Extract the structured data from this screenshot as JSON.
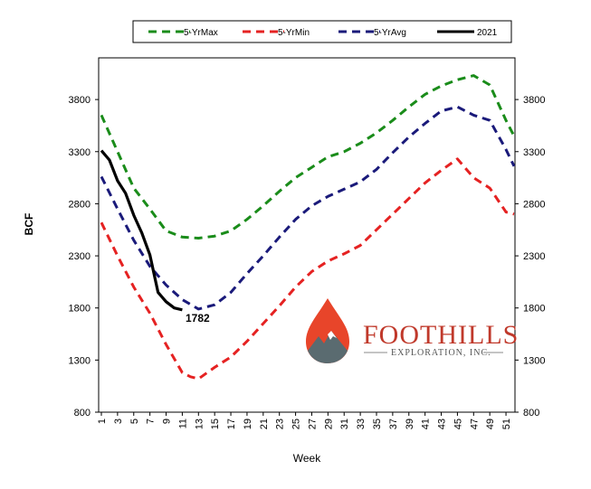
{
  "chart_data": {
    "type": "line",
    "xlabel": "Week",
    "ylabel": "BCF",
    "xlim": [
      1,
      52
    ],
    "ylim": [
      800,
      4200
    ],
    "x_ticks": [
      1,
      3,
      5,
      7,
      9,
      11,
      13,
      15,
      17,
      19,
      21,
      23,
      25,
      27,
      29,
      31,
      33,
      35,
      37,
      39,
      41,
      43,
      45,
      47,
      49,
      51
    ],
    "y_ticks": [
      800,
      1300,
      1800,
      2300,
      2800,
      3300,
      3800
    ],
    "legend_position": "top",
    "series": [
      {
        "name": "5-YrMax",
        "color": "#1a8c1a",
        "style": "dashed",
        "x": [
          1,
          3,
          5,
          7,
          9,
          11,
          13,
          15,
          17,
          19,
          21,
          23,
          25,
          27,
          29,
          31,
          33,
          35,
          37,
          39,
          41,
          43,
          45,
          47,
          49,
          51,
          52
        ],
        "values": [
          3650,
          3300,
          2950,
          2750,
          2540,
          2480,
          2470,
          2490,
          2540,
          2650,
          2780,
          2920,
          3050,
          3150,
          3250,
          3300,
          3380,
          3480,
          3600,
          3730,
          3850,
          3930,
          3990,
          4030,
          3940,
          3600,
          3450
        ]
      },
      {
        "name": "5-YrMin",
        "color": "#e52222",
        "style": "dashed",
        "x": [
          1,
          3,
          5,
          7,
          9,
          11,
          12,
          13,
          15,
          17,
          19,
          21,
          23,
          25,
          27,
          29,
          31,
          33,
          35,
          37,
          39,
          41,
          43,
          45,
          47,
          49,
          51,
          52
        ],
        "values": [
          2620,
          2300,
          2000,
          1750,
          1450,
          1180,
          1140,
          1120,
          1230,
          1330,
          1480,
          1650,
          1820,
          2000,
          2150,
          2250,
          2320,
          2400,
          2550,
          2700,
          2850,
          3000,
          3120,
          3230,
          3050,
          2950,
          2720,
          2700
        ]
      },
      {
        "name": "5-YrAvg",
        "color": "#1a1a7a",
        "style": "dashed",
        "x": [
          1,
          3,
          5,
          7,
          9,
          11,
          13,
          15,
          17,
          19,
          21,
          23,
          25,
          27,
          29,
          31,
          33,
          35,
          37,
          39,
          41,
          43,
          45,
          47,
          49,
          51,
          52
        ],
        "values": [
          3060,
          2750,
          2450,
          2200,
          2020,
          1880,
          1790,
          1830,
          1950,
          2130,
          2300,
          2480,
          2650,
          2780,
          2870,
          2940,
          3010,
          3130,
          3290,
          3440,
          3570,
          3690,
          3730,
          3650,
          3600,
          3320,
          3160
        ]
      },
      {
        "name": "2021",
        "color": "#000000",
        "style": "solid",
        "x": [
          1,
          2,
          3,
          4,
          5,
          6,
          7,
          8,
          9,
          10,
          11
        ],
        "values": [
          3310,
          3220,
          3020,
          2900,
          2690,
          2520,
          2310,
          1950,
          1860,
          1800,
          1782
        ]
      }
    ],
    "annotations": [
      {
        "text": "1782"
      }
    ],
    "logo": {
      "name": "FOOTHILLS",
      "sub": "EXPLORATION, INC."
    }
  }
}
